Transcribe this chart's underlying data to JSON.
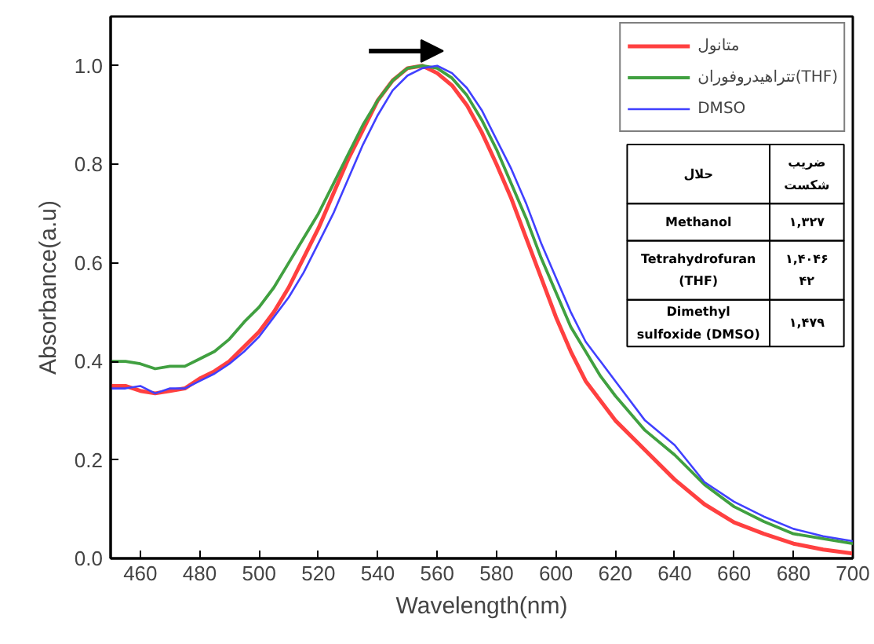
{
  "chart_data": {
    "type": "line",
    "xlabel": "Wavelength(nm)",
    "ylabel": "Absorbance(a.u)",
    "xlim": [
      450,
      700
    ],
    "ylim": [
      0,
      1.1
    ],
    "xticks": [
      460,
      480,
      500,
      520,
      540,
      560,
      580,
      600,
      620,
      640,
      660,
      680,
      700
    ],
    "yticks": [
      {
        "value": 0,
        "label": "0.0"
      },
      0.2,
      0.4,
      0.6,
      0.8,
      {
        "value": 1,
        "label": "1.0"
      }
    ],
    "grid": false,
    "legend": "top right",
    "marker": "none",
    "line_style": "solid",
    "x": [
      450,
      455,
      460,
      465,
      470,
      475,
      480,
      485,
      490,
      495,
      500,
      505,
      510,
      515,
      520,
      525,
      530,
      535,
      540,
      545,
      550,
      555,
      560,
      565,
      570,
      575,
      580,
      585,
      590,
      595,
      600,
      605,
      610,
      615,
      620,
      630,
      640,
      650,
      660,
      670,
      680,
      690,
      700
    ],
    "series": [
      {
        "name": "متانول",
        "color": "#ff4040",
        "values": [
          0.35,
          0.35,
          0.34,
          0.335,
          0.34,
          0.345,
          0.365,
          0.38,
          0.4,
          0.43,
          0.46,
          0.5,
          0.55,
          0.61,
          0.67,
          0.74,
          0.81,
          0.87,
          0.93,
          0.97,
          0.995,
          1.0,
          0.985,
          0.96,
          0.92,
          0.865,
          0.8,
          0.73,
          0.65,
          0.57,
          0.49,
          0.42,
          0.36,
          0.32,
          0.28,
          0.22,
          0.16,
          0.11,
          0.073,
          0.05,
          0.03,
          0.018,
          0.01
        ]
      },
      {
        "name": "تتراهیدروفوران(THF)",
        "color": "#40a040",
        "values": [
          0.4,
          0.4,
          0.395,
          0.385,
          0.39,
          0.39,
          0.405,
          0.42,
          0.445,
          0.48,
          0.51,
          0.55,
          0.6,
          0.65,
          0.7,
          0.76,
          0.82,
          0.88,
          0.93,
          0.97,
          0.995,
          1.0,
          0.995,
          0.975,
          0.94,
          0.89,
          0.83,
          0.76,
          0.69,
          0.61,
          0.54,
          0.47,
          0.42,
          0.37,
          0.33,
          0.26,
          0.21,
          0.15,
          0.105,
          0.075,
          0.05,
          0.04,
          0.03
        ]
      },
      {
        "name": "DMSO",
        "color": "#4040ff",
        "values": [
          0.345,
          0.345,
          0.35,
          0.335,
          0.345,
          0.345,
          0.36,
          0.375,
          0.395,
          0.42,
          0.45,
          0.49,
          0.53,
          0.58,
          0.64,
          0.7,
          0.77,
          0.84,
          0.9,
          0.95,
          0.98,
          0.995,
          1.0,
          0.985,
          0.955,
          0.91,
          0.85,
          0.79,
          0.72,
          0.64,
          0.57,
          0.5,
          0.44,
          0.4,
          0.36,
          0.28,
          0.23,
          0.155,
          0.115,
          0.085,
          0.06,
          0.045,
          0.035
        ]
      }
    ],
    "annotations": [
      "حلال",
      "ضریب شکست",
      "Methanol",
      "۱,۳۲۷",
      "Tetrahydrofuran (THF)",
      "۱,۴۰۴۶۴۲",
      "Dimethyl sulfoxide (DMSO)",
      "۱,۴۷۹"
    ]
  }
}
